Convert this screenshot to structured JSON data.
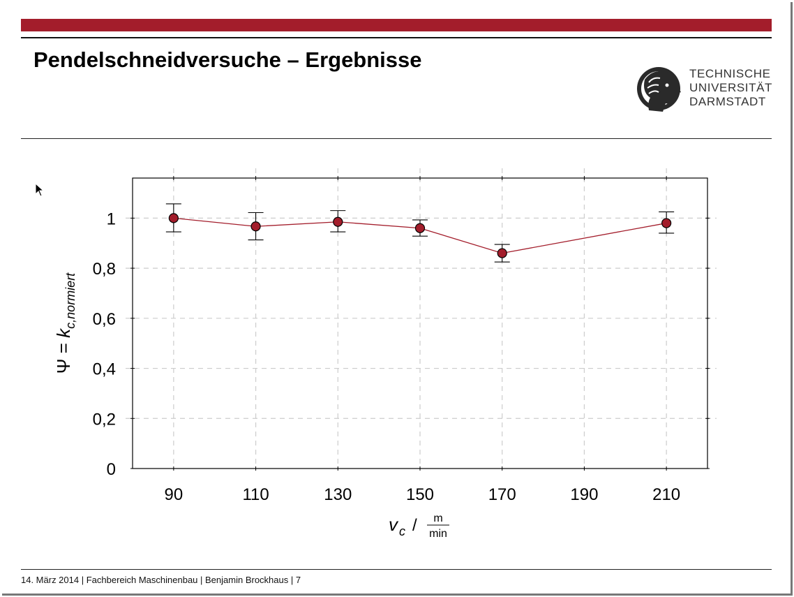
{
  "slide": {
    "title": "Pendelschneidversuche – Ergebnisse",
    "logo_lines": [
      "TECHNISCHE",
      "UNIVERSITÄT",
      "DARMSTADT"
    ],
    "footer": "14. März 2014 | Fachbereich Maschinenbau | Benjamin Brockhaus | 7"
  },
  "colors": {
    "accent": "#a31d2b",
    "marker": "#a31d2b",
    "grid": "#cccccc"
  },
  "chart_data": {
    "type": "line",
    "x": [
      90,
      110,
      130,
      150,
      170,
      210
    ],
    "series": [
      {
        "values": [
          1.0,
          0.967,
          0.985,
          0.96,
          0.86,
          0.98
        ],
        "error_lower": [
          0.945,
          0.913,
          0.945,
          0.928,
          0.825,
          0.94
        ],
        "error_upper": [
          1.057,
          1.022,
          1.03,
          0.993,
          0.895,
          1.025
        ]
      }
    ],
    "xticks": [
      "90",
      "110",
      "130",
      "150",
      "170",
      "190",
      "210"
    ],
    "yticks": [
      "0",
      "0,2",
      "0,4",
      "0,6",
      "0,8",
      "1"
    ],
    "xlim": [
      80,
      220
    ],
    "ylim": [
      0,
      1.16
    ],
    "grid": true,
    "ylabel_main": "Ψ = ",
    "ylabel_symbol": "k",
    "ylabel_subscript": "c,normiert",
    "xlabel_symbol": "v",
    "xlabel_subscript": "c",
    "xlabel_sep": "/",
    "xlabel_unit_num": "m",
    "xlabel_unit_den": "min"
  }
}
